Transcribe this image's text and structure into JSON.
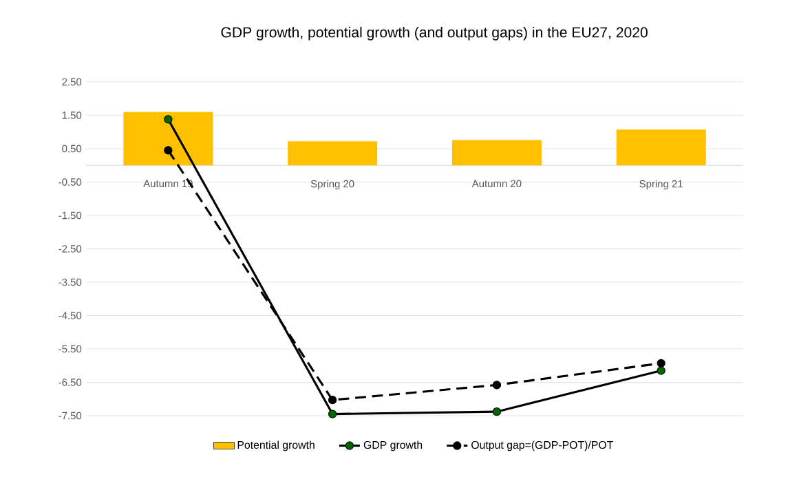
{
  "chart_data": {
    "type": "bar",
    "title": "GDP growth, potential growth (and output gaps) in the EU27, 2020",
    "categories": [
      "Autumn 19",
      "Spring 20",
      "Autumn 20",
      "Spring 21"
    ],
    "series": [
      {
        "name": "Potential growth",
        "color": "#ffc000",
        "values": [
          1.6,
          0.72,
          0.76,
          1.07
        ]
      },
      {
        "name": "GDP growth",
        "type": "line",
        "color": "#000000",
        "marker": "circle",
        "line_style": "solid",
        "values": [
          1.38,
          -7.45,
          -7.38,
          -6.15
        ]
      },
      {
        "name": "Output gap=(GDP-POT)/POT",
        "type": "line",
        "color": "#000000",
        "marker": "circle",
        "line_style": "dashed",
        "values": [
          0.45,
          -7.03,
          -6.58,
          -5.93
        ]
      }
    ],
    "ylim": [
      -7.5,
      2.5
    ],
    "yticks": [
      {
        "value": 2.5,
        "label": "2.50"
      },
      {
        "value": 1.5,
        "label": "1.50"
      },
      {
        "value": 0.5,
        "label": "0.50"
      },
      {
        "value": -0.5,
        "label": "-0.50"
      },
      {
        "value": -1.5,
        "label": "-1.50"
      },
      {
        "value": -2.5,
        "label": "-2.50"
      },
      {
        "value": -3.5,
        "label": "-3.50"
      },
      {
        "value": -4.5,
        "label": "-4.50"
      },
      {
        "value": -5.5,
        "label": "-5.50"
      },
      {
        "value": -6.5,
        "label": "-6.50"
      },
      {
        "value": -7.5,
        "label": "-7.50"
      }
    ],
    "grid": "y",
    "legend": "bottom"
  }
}
